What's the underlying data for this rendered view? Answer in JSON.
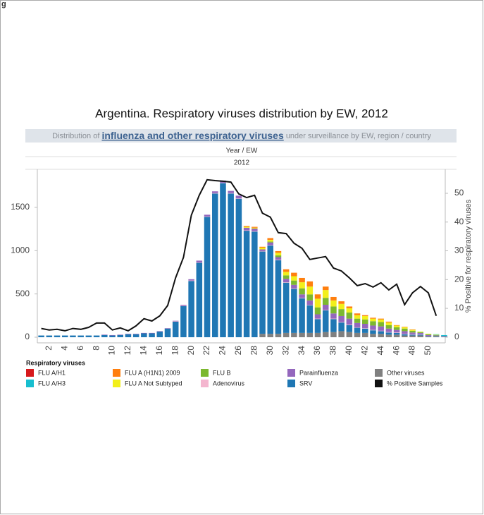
{
  "corner_label": "g",
  "chart_data": {
    "type": "bar",
    "title": "Argentina. Respiratory viruses distribution by EW, 2012",
    "subtitle_parts": [
      "Distribution of",
      "influenza and other respiratory viruses",
      "under surveillance by EW, region / country"
    ],
    "header": "Year / EW",
    "year": "2012",
    "y2_label": "% Positive for respiratory viruses",
    "legend_title": "Respiratory viruses",
    "stacked": true,
    "categories": [
      null,
      "2",
      null,
      "4",
      null,
      "6",
      null,
      "8",
      null,
      "10",
      null,
      "12",
      null,
      "14",
      null,
      "16",
      null,
      "18",
      null,
      "20",
      null,
      "22",
      null,
      "24",
      null,
      "26",
      null,
      "28",
      null,
      "30",
      null,
      "32",
      null,
      "34",
      null,
      "36",
      null,
      "38",
      null,
      "40",
      null,
      "42",
      null,
      "44",
      null,
      "46",
      null,
      "48",
      null,
      "50",
      null,
      null
    ],
    "ylim": [
      -65,
      1915
    ],
    "yticks": [
      0,
      500,
      1000,
      1500
    ],
    "y2lim": [
      -2,
      57.6
    ],
    "y2ticks": [
      0,
      10,
      20,
      30,
      40,
      50
    ],
    "series": [
      {
        "name": "FLU A/H1",
        "color": "#d7191c",
        "values": [
          0,
          0,
          0,
          0,
          0,
          0,
          0,
          0,
          0,
          0,
          0,
          0,
          0,
          0,
          0,
          0,
          0,
          0,
          0,
          0,
          0,
          0,
          0,
          0,
          0,
          0,
          0,
          0,
          0,
          0,
          0,
          0,
          0,
          0,
          0,
          0,
          0,
          0,
          0,
          0,
          0,
          0,
          0,
          0,
          0,
          0,
          0,
          0,
          0,
          0,
          0,
          0
        ]
      },
      {
        "name": "FLU A/H3",
        "color": "#17becf",
        "values": [
          0,
          0,
          0,
          0,
          0,
          0,
          0,
          0,
          0,
          0,
          0,
          0,
          0,
          0,
          0,
          0,
          0,
          0,
          0,
          0,
          0,
          0,
          0,
          0,
          0,
          0,
          0,
          0,
          0,
          0,
          0,
          0,
          0,
          0,
          0,
          0,
          0,
          0,
          0,
          0,
          0,
          0,
          0,
          0,
          0,
          0,
          0,
          0,
          0,
          0,
          5,
          10
        ]
      },
      {
        "name": "FLU A (H1N1) 2009",
        "color": "#ff7f0e",
        "values": [
          0,
          0,
          0,
          0,
          0,
          0,
          0,
          0,
          0,
          0,
          0,
          0,
          0,
          0,
          0,
          0,
          0,
          0,
          0,
          0,
          0,
          0,
          0,
          0,
          0,
          0,
          10,
          10,
          10,
          20,
          20,
          30,
          40,
          50,
          60,
          50,
          40,
          40,
          30,
          20,
          20,
          10,
          10,
          10,
          10,
          5,
          5,
          5,
          0,
          0,
          0,
          0
        ]
      },
      {
        "name": "FLU A Not Subtyped",
        "color": "#f2ef1a",
        "values": [
          0,
          0,
          0,
          0,
          0,
          0,
          0,
          0,
          0,
          0,
          0,
          0,
          0,
          0,
          0,
          0,
          0,
          0,
          0,
          0,
          0,
          0,
          0,
          0,
          0,
          0,
          10,
          10,
          20,
          20,
          30,
          40,
          50,
          70,
          90,
          100,
          90,
          70,
          60,
          50,
          40,
          40,
          30,
          30,
          30,
          20,
          15,
          10,
          5,
          5,
          5,
          0
        ]
      },
      {
        "name": "FLU B",
        "color": "#7cb82f",
        "values": [
          0,
          0,
          0,
          0,
          0,
          0,
          0,
          0,
          0,
          0,
          0,
          0,
          0,
          0,
          0,
          0,
          0,
          0,
          0,
          0,
          0,
          0,
          0,
          0,
          0,
          0,
          0,
          0,
          0,
          10,
          20,
          40,
          50,
          70,
          70,
          80,
          80,
          80,
          80,
          70,
          50,
          50,
          50,
          50,
          40,
          30,
          30,
          20,
          10,
          10,
          5,
          0
        ]
      },
      {
        "name": "Adenovirus",
        "color": "#f4b6cf",
        "values": [
          0,
          0,
          0,
          0,
          0,
          0,
          0,
          0,
          0,
          0,
          0,
          0,
          0,
          0,
          0,
          0,
          0,
          5,
          5,
          5,
          5,
          5,
          5,
          5,
          5,
          5,
          5,
          5,
          5,
          5,
          5,
          5,
          5,
          5,
          5,
          5,
          5,
          5,
          5,
          5,
          5,
          5,
          5,
          5,
          5,
          5,
          5,
          5,
          5,
          0,
          0,
          0
        ]
      },
      {
        "name": "Parainfluenza",
        "color": "#9467bd",
        "values": [
          0,
          0,
          0,
          0,
          0,
          0,
          0,
          0,
          5,
          5,
          5,
          5,
          5,
          5,
          5,
          5,
          5,
          5,
          10,
          15,
          20,
          20,
          20,
          25,
          25,
          30,
          30,
          30,
          20,
          30,
          30,
          40,
          40,
          40,
          50,
          50,
          60,
          60,
          70,
          70,
          50,
          50,
          50,
          50,
          40,
          30,
          30,
          20,
          15,
          10,
          5,
          5
        ]
      },
      {
        "name": "SRV",
        "color": "#1f77b4",
        "values": [
          20,
          20,
          20,
          20,
          20,
          20,
          20,
          20,
          25,
          20,
          25,
          35,
          35,
          45,
          45,
          65,
          100,
          180,
          360,
          650,
          860,
          1390,
          1660,
          1780,
          1660,
          1600,
          1230,
          1220,
          950,
          1020,
          850,
          580,
          510,
          400,
          320,
          160,
          250,
          150,
          100,
          80,
          60,
          50,
          40,
          30,
          25,
          20,
          15,
          10,
          10,
          5,
          5,
          5
        ]
      },
      {
        "name": "Other viruses",
        "color": "#808080",
        "values": [
          0,
          0,
          0,
          0,
          0,
          0,
          0,
          0,
          0,
          0,
          0,
          0,
          0,
          0,
          0,
          0,
          0,
          0,
          0,
          0,
          0,
          0,
          0,
          0,
          0,
          0,
          0,
          0,
          40,
          40,
          40,
          50,
          50,
          50,
          50,
          50,
          60,
          60,
          70,
          60,
          50,
          50,
          40,
          40,
          30,
          30,
          20,
          20,
          20,
          10,
          10,
          5
        ]
      },
      {
        "name": "% Positive Samples",
        "color": "#111111",
        "type": "line",
        "axis": "y2",
        "values": [
          3,
          2.5,
          2.7,
          2.2,
          3,
          2.7,
          3.4,
          4.9,
          4.9,
          2.5,
          3.2,
          2.2,
          3.9,
          6.4,
          5.6,
          7.4,
          11,
          20.6,
          27.7,
          42.4,
          49.3,
          54.7,
          54.4,
          54.2,
          53.9,
          49.8,
          48.5,
          49.3,
          43.1,
          41.7,
          36.3,
          36,
          32.6,
          30.9,
          27,
          27.5,
          28,
          24,
          23,
          20.6,
          17.9,
          18.6,
          17.4,
          18.9,
          16.4,
          18.4,
          11.3,
          15.4,
          17.6,
          15.4,
          7.4,
          null
        ]
      }
    ]
  }
}
